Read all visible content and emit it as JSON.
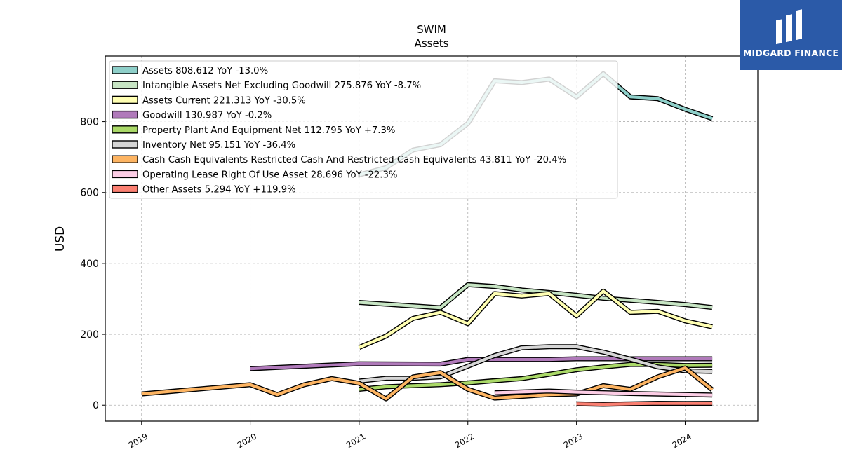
{
  "brand": {
    "name": "MIDGARD FINANCE"
  },
  "chart_data": {
    "type": "line",
    "title": "SWIM",
    "subtitle": "Assets",
    "xlabel": "",
    "ylabel": "USD",
    "xlim": [
      "2018-09-01",
      "2024-09-01"
    ],
    "ylim": [
      -45,
      985
    ],
    "yticks": [
      0,
      200,
      400,
      600,
      800
    ],
    "xticks": [
      "2019",
      "2020",
      "2021",
      "2022",
      "2023",
      "2024"
    ],
    "grid": true,
    "legend_position": "top-left",
    "series": [
      {
        "name": "Assets",
        "legend": "Assets  808.612 YoY -13.0%",
        "color": "#8ecfc9",
        "points": [
          [
            "2021-01-01",
            650
          ],
          [
            "2021-04-01",
            670
          ],
          [
            "2021-07-01",
            720
          ],
          [
            "2021-10-01",
            735
          ],
          [
            "2022-01-01",
            795
          ],
          [
            "2022-04-01",
            915
          ],
          [
            "2022-07-01",
            910
          ],
          [
            "2022-10-01",
            920
          ],
          [
            "2023-01-01",
            870
          ],
          [
            "2023-04-01",
            935
          ],
          [
            "2023-07-01",
            870
          ],
          [
            "2023-10-01",
            865
          ],
          [
            "2024-01-01",
            835
          ],
          [
            "2024-04-01",
            808.612
          ]
        ]
      },
      {
        "name": "Intangible Assets Net Excluding Goodwill",
        "legend": "Intangible Assets Net Excluding Goodwill  275.876 YoY -8.7%",
        "color": "#c7e5c4",
        "points": [
          [
            "2021-01-01",
            290
          ],
          [
            "2021-10-01",
            275
          ],
          [
            "2022-01-01",
            340
          ],
          [
            "2022-04-01",
            335
          ],
          [
            "2022-07-01",
            325
          ],
          [
            "2022-10-01",
            318
          ],
          [
            "2023-01-01",
            310
          ],
          [
            "2023-04-01",
            302
          ],
          [
            "2023-07-01",
            296
          ],
          [
            "2023-10-01",
            290
          ],
          [
            "2024-01-01",
            284
          ],
          [
            "2024-04-01",
            275.876
          ]
        ]
      },
      {
        "name": "Assets Current",
        "legend": "Assets Current  221.313 YoY -30.5%",
        "color": "#ffffb3",
        "points": [
          [
            "2021-01-01",
            163
          ],
          [
            "2021-04-01",
            195
          ],
          [
            "2021-07-01",
            245
          ],
          [
            "2021-10-01",
            262
          ],
          [
            "2022-01-01",
            230
          ],
          [
            "2022-04-01",
            315
          ],
          [
            "2022-07-01",
            308
          ],
          [
            "2022-10-01",
            315
          ],
          [
            "2023-01-01",
            252
          ],
          [
            "2023-04-01",
            322
          ],
          [
            "2023-07-01",
            262
          ],
          [
            "2023-10-01",
            265
          ],
          [
            "2024-01-01",
            238
          ],
          [
            "2024-04-01",
            221.313
          ]
        ]
      },
      {
        "name": "Goodwill",
        "legend": "Goodwill  130.987 YoY -0.2%",
        "color": "#b07aba",
        "points": [
          [
            "2020-01-01",
            103
          ],
          [
            "2021-01-01",
            117
          ],
          [
            "2021-10-01",
            116
          ],
          [
            "2022-01-01",
            129
          ],
          [
            "2022-10-01",
            129
          ],
          [
            "2023-01-01",
            131
          ],
          [
            "2024-04-01",
            130.987
          ]
        ]
      },
      {
        "name": "Property Plant And Equipment Net",
        "legend": "Property Plant And Equipment Net  112.795 YoY +7.3%",
        "color": "#aad968",
        "points": [
          [
            "2021-01-01",
            45
          ],
          [
            "2021-04-01",
            52
          ],
          [
            "2021-07-01",
            55
          ],
          [
            "2021-10-01",
            58
          ],
          [
            "2022-01-01",
            63
          ],
          [
            "2022-04-01",
            69
          ],
          [
            "2022-07-01",
            75
          ],
          [
            "2022-10-01",
            87
          ],
          [
            "2023-01-01",
            100
          ],
          [
            "2023-04-01",
            108
          ],
          [
            "2023-07-01",
            115
          ],
          [
            "2023-10-01",
            115
          ],
          [
            "2024-01-01",
            112
          ],
          [
            "2024-04-01",
            112.795
          ]
        ]
      },
      {
        "name": "Inventory Net",
        "legend": "Inventory Net  95.151 YoY -36.4%",
        "color": "#d6d6d6",
        "points": [
          [
            "2021-01-01",
            68
          ],
          [
            "2021-04-01",
            76
          ],
          [
            "2021-07-01",
            76
          ],
          [
            "2021-10-01",
            80
          ],
          [
            "2022-01-01",
            110
          ],
          [
            "2022-04-01",
            140
          ],
          [
            "2022-07-01",
            162
          ],
          [
            "2022-10-01",
            165
          ],
          [
            "2023-01-01",
            165
          ],
          [
            "2023-04-01",
            150
          ],
          [
            "2023-07-01",
            130
          ],
          [
            "2023-10-01",
            108
          ],
          [
            "2024-01-01",
            97
          ],
          [
            "2024-04-01",
            95.151
          ]
        ]
      },
      {
        "name": "Cash Cash Equivalents Restricted Cash And Restricted Cash Equivalents",
        "legend": "Cash Cash Equivalents Restricted Cash And Restricted Cash Equivalents  43.811 YoY -20.4%",
        "color": "#fdb462",
        "points": [
          [
            "2019-01-01",
            32
          ],
          [
            "2020-01-01",
            58
          ],
          [
            "2020-04-01",
            30
          ],
          [
            "2020-07-01",
            58
          ],
          [
            "2020-10-01",
            75
          ],
          [
            "2021-01-01",
            62
          ],
          [
            "2021-04-01",
            18
          ],
          [
            "2021-07-01",
            80
          ],
          [
            "2021-10-01",
            92
          ],
          [
            "2022-01-01",
            45
          ],
          [
            "2022-04-01",
            20
          ],
          [
            "2022-07-01",
            25
          ],
          [
            "2022-10-01",
            30
          ],
          [
            "2023-01-01",
            32
          ],
          [
            "2023-04-01",
            55
          ],
          [
            "2023-07-01",
            45
          ],
          [
            "2023-10-01",
            80
          ],
          [
            "2024-01-01",
            105
          ],
          [
            "2024-04-01",
            43.811
          ]
        ]
      },
      {
        "name": "Operating Lease Right Of Use Asset",
        "legend": "Operating Lease Right Of Use Asset  28.696 YoY -22.3%",
        "color": "#fccde5",
        "points": [
          [
            "2022-04-01",
            35
          ],
          [
            "2022-10-01",
            40
          ],
          [
            "2023-01-01",
            37
          ],
          [
            "2023-07-01",
            33
          ],
          [
            "2024-04-01",
            28.696
          ]
        ]
      },
      {
        "name": "Other Assets",
        "legend": "Other Assets  5.294 YoY +119.9%",
        "color": "#fb8072",
        "points": [
          [
            "2023-01-01",
            4
          ],
          [
            "2023-04-01",
            2.5
          ],
          [
            "2023-07-01",
            4
          ],
          [
            "2023-10-01",
            5.5
          ],
          [
            "2024-01-01",
            5
          ],
          [
            "2024-04-01",
            5.294
          ]
        ]
      }
    ]
  }
}
